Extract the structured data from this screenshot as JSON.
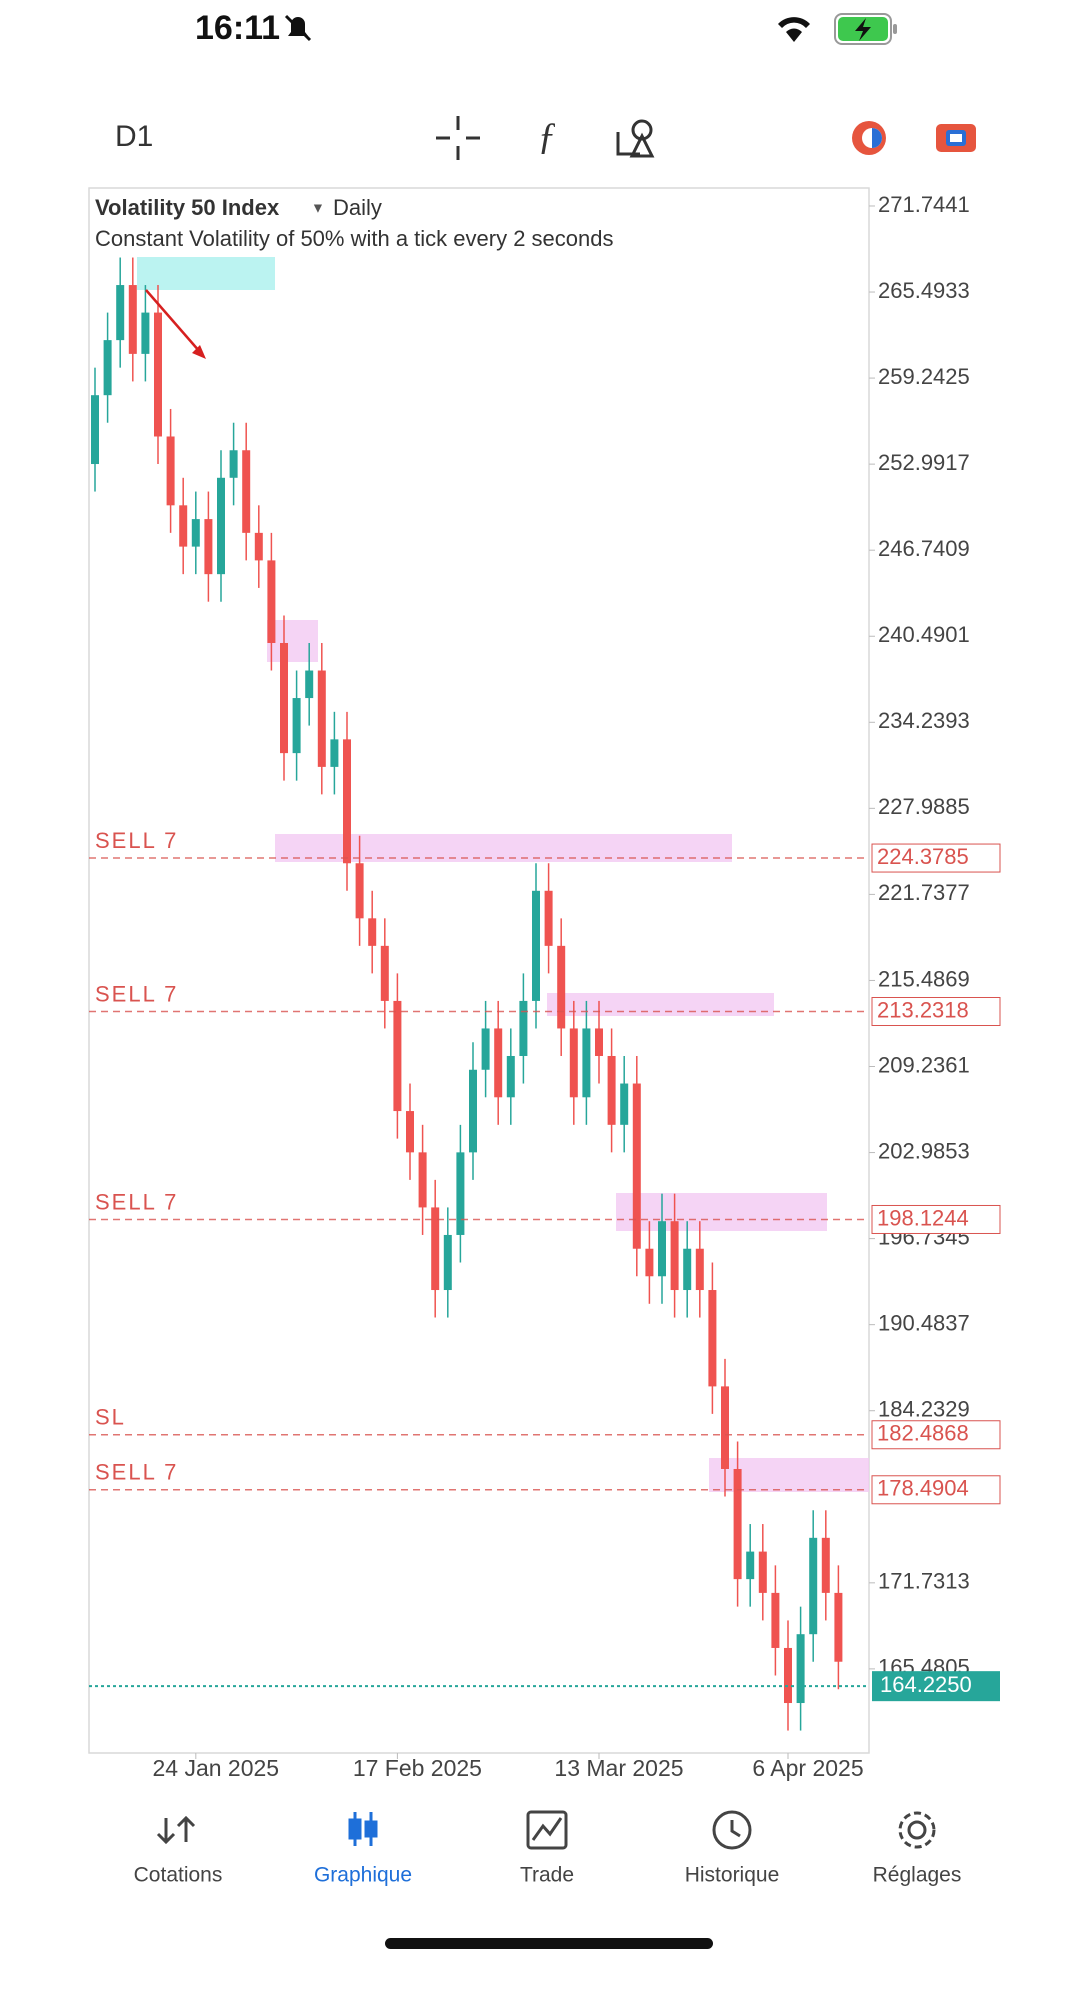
{
  "status": {
    "time": "16:11"
  },
  "toolbar": {
    "timeframe": "D1"
  },
  "chart_data": {
    "type": "candlestick",
    "title": "Volatility 50 Index",
    "period": "Daily",
    "subtitle": "Constant Volatility of 50% with a tick every 2 seconds",
    "open": [
      253,
      258,
      262,
      266,
      261,
      264,
      255,
      250,
      247,
      249,
      245,
      252,
      254,
      248,
      246,
      240,
      232,
      236,
      238,
      231,
      233,
      224,
      220,
      218,
      214,
      206,
      203,
      199,
      193,
      197,
      203,
      209,
      212,
      207,
      210,
      214,
      222,
      218,
      212,
      207,
      212,
      210,
      205,
      208,
      196,
      194,
      198,
      193,
      196,
      193,
      186,
      180,
      172,
      174,
      171,
      167,
      163,
      168,
      175,
      171
    ],
    "high": [
      260,
      264,
      268,
      268,
      266,
      266,
      257,
      252,
      251,
      251,
      254,
      256,
      256,
      250,
      248,
      242,
      238,
      240,
      240,
      235,
      235,
      226,
      222,
      220,
      216,
      208,
      205,
      201,
      199,
      205,
      211,
      214,
      214,
      212,
      216,
      224,
      224,
      220,
      214,
      214,
      214,
      212,
      210,
      210,
      198,
      200,
      200,
      198,
      198,
      195,
      188,
      182,
      176,
      176,
      173,
      169,
      170,
      177,
      177,
      173
    ],
    "low": [
      251,
      256,
      260,
      259,
      259,
      253,
      248,
      245,
      245,
      243,
      243,
      250,
      246,
      244,
      238,
      230,
      230,
      234,
      229,
      229,
      222,
      218,
      216,
      212,
      204,
      201,
      197,
      191,
      191,
      195,
      201,
      207,
      205,
      205,
      208,
      212,
      216,
      210,
      205,
      205,
      208,
      203,
      203,
      194,
      192,
      192,
      191,
      191,
      191,
      184,
      178,
      170,
      170,
      169,
      165,
      161,
      161,
      166,
      169,
      164
    ],
    "close": [
      258,
      262,
      266,
      261,
      264,
      255,
      250,
      247,
      249,
      245,
      252,
      254,
      248,
      246,
      240,
      232,
      236,
      238,
      231,
      233,
      224,
      220,
      218,
      214,
      206,
      203,
      199,
      193,
      197,
      203,
      209,
      212,
      207,
      210,
      214,
      222,
      218,
      212,
      207,
      212,
      210,
      205,
      208,
      196,
      194,
      198,
      193,
      196,
      193,
      186,
      180,
      172,
      174,
      171,
      167,
      163,
      168,
      175,
      171,
      166
    ],
    "up_color": "#26a69a",
    "down_color": "#ef5350",
    "x_labels": [
      {
        "index": 8,
        "label": "24 Jan 2025"
      },
      {
        "index": 24,
        "label": "17 Feb 2025"
      },
      {
        "index": 40,
        "label": "13 Mar 2025"
      },
      {
        "index": 55,
        "label": "6 Apr 2025"
      }
    ],
    "ylim": [
      159.37,
      273.05
    ],
    "yticks": [
      271.7441,
      265.4933,
      259.2425,
      252.9917,
      246.7409,
      240.4901,
      234.2393,
      227.9885,
      221.7377,
      215.4869,
      209.2361,
      202.9853,
      196.7345,
      190.4837,
      184.2329,
      171.7313,
      165.4805
    ],
    "levels": [
      {
        "name": "SELL 7",
        "value": 224.3785,
        "color": "#d9534f"
      },
      {
        "name": "SELL 7",
        "value": 213.2318,
        "color": "#d9534f"
      },
      {
        "name": "SELL 7",
        "value": 198.1244,
        "color": "#d9534f"
      },
      {
        "name": "SL",
        "value": 182.4868,
        "color": "#d9534f"
      },
      {
        "name": "SELL 7",
        "value": 178.4904,
        "color": "#d9534f"
      }
    ],
    "last_price": {
      "value": 164.225,
      "label": "164.2250",
      "color": "#26a69a"
    }
  },
  "nav": [
    "Cotations",
    "Graphique",
    "Trade",
    "Historique",
    "Réglages"
  ]
}
